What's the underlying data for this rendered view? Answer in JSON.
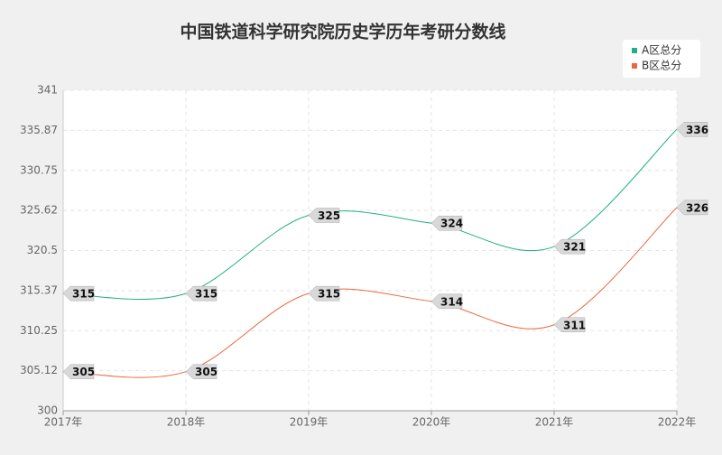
{
  "chart_data": {
    "type": "line",
    "title": "中国铁道科学研究院历史学历年考研分数线",
    "categories": [
      "2017年",
      "2018年",
      "2019年",
      "2020年",
      "2021年",
      "2022年"
    ],
    "series": [
      {
        "name": "A区总分",
        "color": "#20b088",
        "values": [
          315,
          315,
          325,
          324,
          321,
          336
        ]
      },
      {
        "name": "B区总分",
        "color": "#e8693f",
        "values": [
          305,
          305,
          315,
          314,
          311,
          326
        ]
      }
    ],
    "ylim": [
      300,
      341
    ],
    "yticks": [
      300,
      305.12,
      310.25,
      315.37,
      320.5,
      325.62,
      330.75,
      335.87,
      341
    ],
    "grid": true,
    "legend": "top-right",
    "smooth": true
  }
}
